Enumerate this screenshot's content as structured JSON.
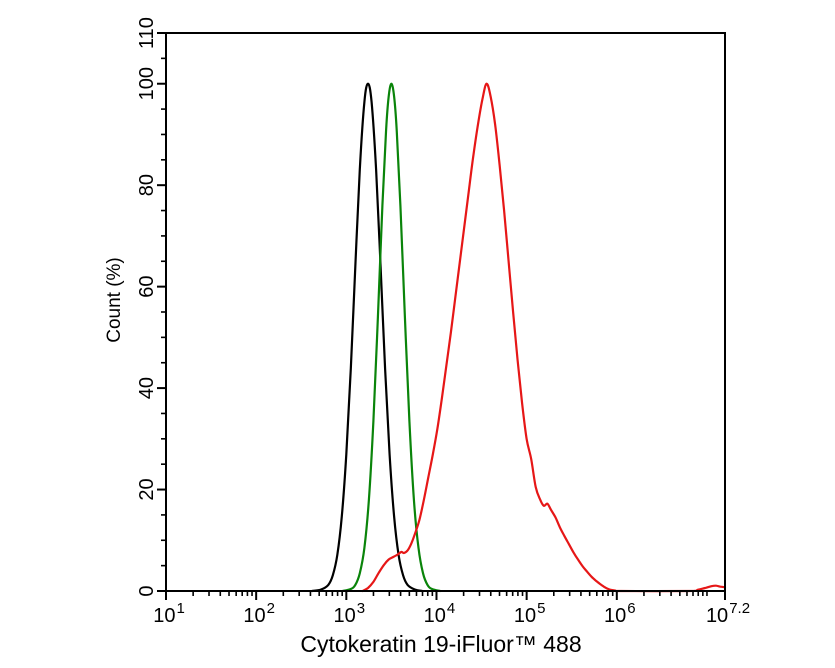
{
  "chart_data": {
    "type": "line",
    "title": "",
    "xlabel": "Cytokeratin 19-iFluor™ 488",
    "ylabel": "Count (%)",
    "x_scale": "log10",
    "x_log_range": [
      1,
      7.2
    ],
    "ylim": [
      0,
      110
    ],
    "grid": false,
    "legend": "none",
    "frame_color": "#000000",
    "background_color": "#ffffff",
    "x_tick_base": "10",
    "x_major_ticks": [
      {
        "log": 1,
        "exponent": "1"
      },
      {
        "log": 2,
        "exponent": "2"
      },
      {
        "log": 3,
        "exponent": "3"
      },
      {
        "log": 4,
        "exponent": "4"
      },
      {
        "log": 5,
        "exponent": "5"
      },
      {
        "log": 6,
        "exponent": "6"
      },
      {
        "log": 7.2,
        "exponent": "7.2"
      }
    ],
    "x_minor_ticks_per_decade": [
      2,
      3,
      4,
      5,
      6,
      7,
      8,
      9
    ],
    "x_extra_minor_tick_logs": [
      7
    ],
    "y_major_ticks": [
      0,
      20,
      40,
      60,
      80,
      100,
      110
    ],
    "y_minor_tick_step": 5,
    "series": [
      {
        "name": "black-curve",
        "color": "#000000",
        "peak": {
          "log_x": 3.24,
          "count_pct": 100
        },
        "points": [
          [
            2.62,
            0
          ],
          [
            2.72,
            0.3
          ],
          [
            2.8,
            1.2
          ],
          [
            2.85,
            3.1
          ],
          [
            2.9,
            7.1
          ],
          [
            2.95,
            14.7
          ],
          [
            3.0,
            26.9
          ],
          [
            3.05,
            43.8
          ],
          [
            3.1,
            63.9
          ],
          [
            3.15,
            83.1
          ],
          [
            3.2,
            96.4
          ],
          [
            3.24,
            100
          ],
          [
            3.28,
            96.4
          ],
          [
            3.33,
            83.1
          ],
          [
            3.38,
            63.9
          ],
          [
            3.43,
            43.8
          ],
          [
            3.48,
            26.9
          ],
          [
            3.53,
            14.7
          ],
          [
            3.58,
            7.1
          ],
          [
            3.63,
            3.1
          ],
          [
            3.68,
            1.2
          ],
          [
            3.76,
            0.3
          ],
          [
            3.84,
            0
          ]
        ]
      },
      {
        "name": "green-curve",
        "color": "#0a840a",
        "peak": {
          "log_x": 3.5,
          "count_pct": 100
        },
        "points": [
          [
            2.96,
            0
          ],
          [
            3.05,
            0.4
          ],
          [
            3.1,
            1.2
          ],
          [
            3.15,
            3.5
          ],
          [
            3.2,
            8.5
          ],
          [
            3.25,
            18
          ],
          [
            3.3,
            33.5
          ],
          [
            3.35,
            54
          ],
          [
            3.4,
            76
          ],
          [
            3.44,
            90.5
          ],
          [
            3.47,
            97.5
          ],
          [
            3.5,
            100
          ],
          [
            3.53,
            97.5
          ],
          [
            3.56,
            90.5
          ],
          [
            3.6,
            76
          ],
          [
            3.65,
            54
          ],
          [
            3.7,
            33.5
          ],
          [
            3.75,
            18
          ],
          [
            3.8,
            8.5
          ],
          [
            3.85,
            3.5
          ],
          [
            3.9,
            1.2
          ],
          [
            3.95,
            0.4
          ],
          [
            4.04,
            0
          ]
        ]
      },
      {
        "name": "red-curve",
        "color": "#e61717",
        "peak": {
          "log_x": 4.55,
          "count_pct": 100
        },
        "points": [
          [
            3.18,
            0
          ],
          [
            3.24,
            0.6
          ],
          [
            3.3,
            1.8
          ],
          [
            3.36,
            3.6
          ],
          [
            3.42,
            5.2
          ],
          [
            3.47,
            6.2
          ],
          [
            3.52,
            6.7
          ],
          [
            3.57,
            7.2
          ],
          [
            3.61,
            7.7
          ],
          [
            3.64,
            7.5
          ],
          [
            3.68,
            8.0
          ],
          [
            3.72,
            9.3
          ],
          [
            3.76,
            11.2
          ],
          [
            3.81,
            14.0
          ],
          [
            3.86,
            18.0
          ],
          [
            3.91,
            22.5
          ],
          [
            3.96,
            27.0
          ],
          [
            4.01,
            32.0
          ],
          [
            4.06,
            38.0
          ],
          [
            4.11,
            44.5
          ],
          [
            4.16,
            51.0
          ],
          [
            4.21,
            58.0
          ],
          [
            4.26,
            65.0
          ],
          [
            4.31,
            72.0
          ],
          [
            4.36,
            79.0
          ],
          [
            4.41,
            86.0
          ],
          [
            4.46,
            92.0
          ],
          [
            4.51,
            97.0
          ],
          [
            4.555,
            100
          ],
          [
            4.6,
            97.5
          ],
          [
            4.65,
            92.0
          ],
          [
            4.7,
            84.0
          ],
          [
            4.75,
            75.0
          ],
          [
            4.8,
            65.0
          ],
          [
            4.85,
            55.0
          ],
          [
            4.9,
            45.5
          ],
          [
            4.95,
            37.0
          ],
          [
            5.0,
            30.0
          ],
          [
            5.05,
            26.0
          ],
          [
            5.1,
            20.5
          ],
          [
            5.15,
            18.0
          ],
          [
            5.19,
            16.8
          ],
          [
            5.23,
            17.2
          ],
          [
            5.27,
            16.0
          ],
          [
            5.32,
            14.5
          ],
          [
            5.37,
            12.5
          ],
          [
            5.42,
            10.8
          ],
          [
            5.47,
            9.2
          ],
          [
            5.52,
            7.6
          ],
          [
            5.57,
            6.2
          ],
          [
            5.62,
            4.9
          ],
          [
            5.67,
            3.8
          ],
          [
            5.72,
            2.8
          ],
          [
            5.77,
            2.0
          ],
          [
            5.82,
            1.3
          ],
          [
            5.87,
            0.7
          ],
          [
            5.92,
            0.3
          ],
          [
            5.98,
            0.1
          ],
          [
            6.05,
            0
          ],
          [
            6.8,
            0
          ],
          [
            6.9,
            0.25
          ],
          [
            6.98,
            0.6
          ],
          [
            7.05,
            0.95
          ],
          [
            7.1,
            1.05
          ],
          [
            7.15,
            0.85
          ],
          [
            7.2,
            0.75
          ]
        ]
      }
    ]
  }
}
